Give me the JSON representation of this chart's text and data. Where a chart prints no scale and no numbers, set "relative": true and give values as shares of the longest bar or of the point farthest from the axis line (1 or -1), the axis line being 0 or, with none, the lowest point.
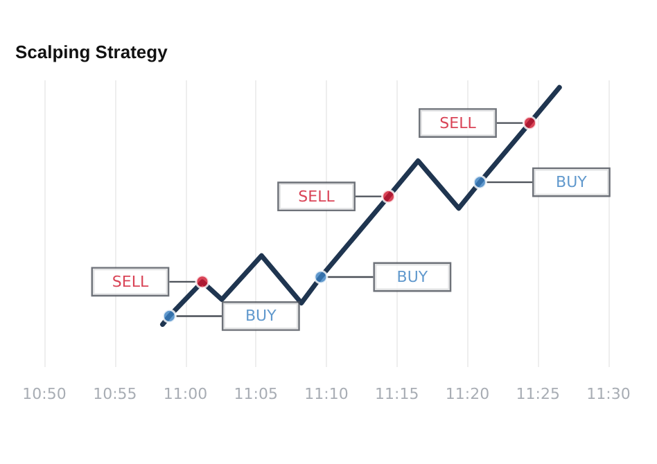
{
  "chart_data": {
    "type": "line",
    "title": "Scalping Strategy",
    "relative": true,
    "x": [
      10.973,
      10.981,
      11.02,
      11.043,
      11.09,
      11.137,
      11.16,
      11.24,
      11.275,
      11.323,
      11.348,
      11.407,
      11.442
    ],
    "series": [
      {
        "color": "#1f3550",
        "values": [
          0,
          0.035,
          0.18,
          0.105,
          0.29,
          0.09,
          0.2,
          0.54,
          0.69,
          0.49,
          0.6,
          0.85,
          1
        ]
      },
      {
        "type": "scatter",
        "color": "#3a7fc1",
        "x": [
          10.981,
          11.16,
          11.348
        ],
        "values": [
          0.035,
          0.2,
          0.6
        ]
      },
      {
        "type": "scatter",
        "color": "#d0142c",
        "x": [
          11.02,
          11.24,
          11.407
        ],
        "values": [
          0.18,
          0.54,
          0.85
        ]
      }
    ],
    "annotations": [
      "BUY",
      "SELL",
      "BUY",
      "SELL",
      "BUY",
      "SELL"
    ],
    "xlim": [
      10.8333,
      11.5
    ],
    "xticks": [
      {
        "value": 10.8333,
        "label": "10:50"
      },
      {
        "value": 10.9167,
        "label": "10:55"
      },
      {
        "value": 11,
        "label": "11:00"
      },
      {
        "value": 11.0833,
        "label": "11:05"
      },
      {
        "value": 11.1667,
        "label": "11:10"
      },
      {
        "value": 11.25,
        "label": "11:15"
      },
      {
        "value": 11.3333,
        "label": "11:20"
      },
      {
        "value": 11.4167,
        "label": "11:25"
      },
      {
        "value": 11.5,
        "label": "11:30"
      }
    ],
    "grid": "x",
    "line_style": "solid"
  }
}
